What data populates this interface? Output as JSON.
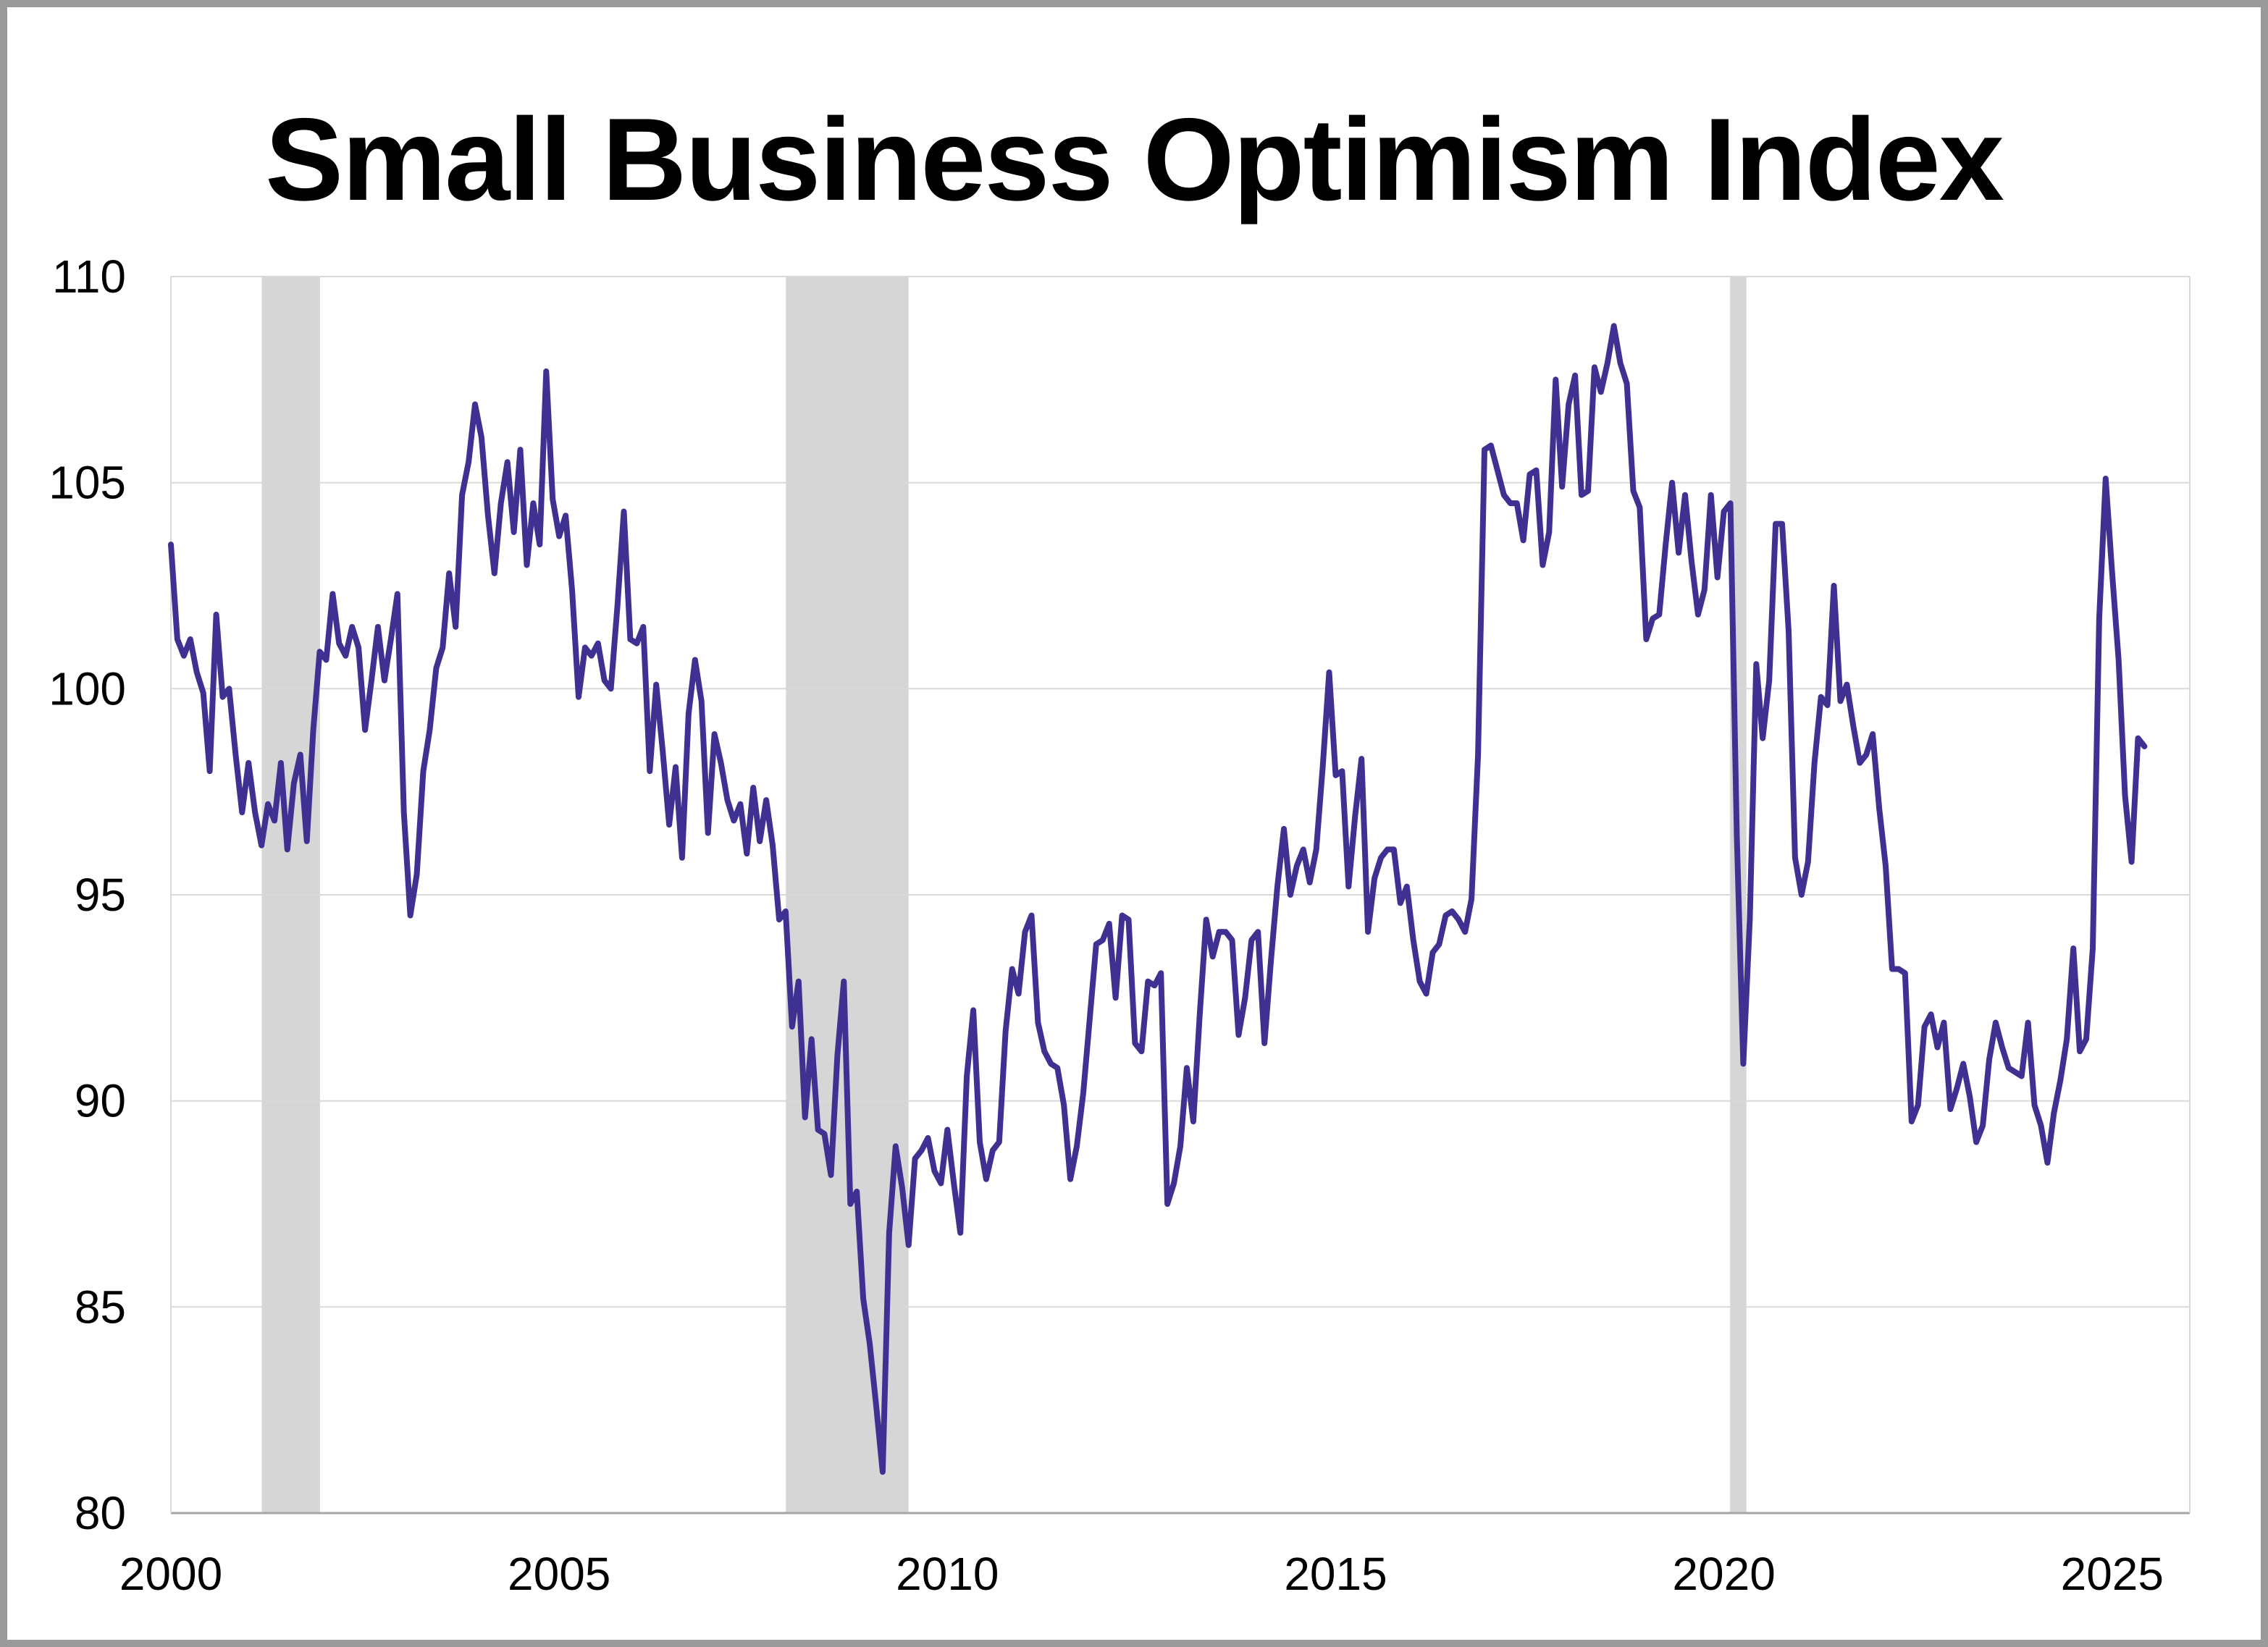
{
  "page": {
    "title": "Small Business Optimism Index"
  },
  "chart_data": {
    "type": "line",
    "title": "Small Business Optimism Index",
    "xlabel": "",
    "ylabel": "",
    "x_min": 2000,
    "x_max": 2026,
    "y_min": 80,
    "y_max": 110,
    "y_ticks": [
      80,
      85,
      90,
      95,
      100,
      105,
      110
    ],
    "x_ticks": [
      2000,
      2005,
      2010,
      2015,
      2020,
      2025
    ],
    "start_year": 2000,
    "frequency": "monthly",
    "grid": true,
    "legend": "none",
    "line_color": "#3e3192",
    "recession_band_color": "#d6d6d6",
    "gridline_color": "#d9d9d9",
    "axis_color": "#a6a6a6",
    "recession_bands": [
      {
        "start": 2001.17,
        "end": 2001.92
      },
      {
        "start": 2007.92,
        "end": 2009.5
      },
      {
        "start": 2020.08,
        "end": 2020.29
      }
    ],
    "series_name": "Small Business Optimism Index",
    "values": [
      103.5,
      101.2,
      100.8,
      101.2,
      100.4,
      99.9,
      98.0,
      101.8,
      99.8,
      100.0,
      98.4,
      97.0,
      98.2,
      97.0,
      96.2,
      97.2,
      96.8,
      98.2,
      96.1,
      97.7,
      98.4,
      96.3,
      99.0,
      100.9,
      100.7,
      102.3,
      101.1,
      100.8,
      101.5,
      101.0,
      99.0,
      100.2,
      101.5,
      100.2,
      101.2,
      102.3,
      97.0,
      94.5,
      95.5,
      98.0,
      99.0,
      100.5,
      101.0,
      102.8,
      101.5,
      104.7,
      105.5,
      106.9,
      106.1,
      104.2,
      102.8,
      104.5,
      105.5,
      103.8,
      105.8,
      103.0,
      104.5,
      103.5,
      107.7,
      104.6,
      103.7,
      104.2,
      102.4,
      99.8,
      101.0,
      100.8,
      101.1,
      100.2,
      100.0,
      102.0,
      104.3,
      101.2,
      101.1,
      101.5,
      98.0,
      100.1,
      98.5,
      96.7,
      98.1,
      95.9,
      99.4,
      100.7,
      99.7,
      96.5,
      98.9,
      98.2,
      97.3,
      96.8,
      97.2,
      96.0,
      97.6,
      96.3,
      97.3,
      96.2,
      94.4,
      94.6,
      91.8,
      92.9,
      89.6,
      91.5,
      89.3,
      89.2,
      88.2,
      91.1,
      92.9,
      87.5,
      87.8,
      85.2,
      84.1,
      82.6,
      81.0,
      86.8,
      88.9,
      87.9,
      86.5,
      88.6,
      88.8,
      89.1,
      88.3,
      88.0,
      89.3,
      88.0,
      86.8,
      90.6,
      92.2,
      89.0,
      88.1,
      88.8,
      89.0,
      91.7,
      93.2,
      92.6,
      94.1,
      94.5,
      91.9,
      91.2,
      90.9,
      90.8,
      89.9,
      88.1,
      88.9,
      90.2,
      92.0,
      93.8,
      93.9,
      94.3,
      92.5,
      94.5,
      94.4,
      91.4,
      91.2,
      92.9,
      92.8,
      93.1,
      87.5,
      88.0,
      88.9,
      90.8,
      89.5,
      92.1,
      94.4,
      93.5,
      94.1,
      94.1,
      93.9,
      91.6,
      92.5,
      93.9,
      94.1,
      91.4,
      93.4,
      95.2,
      96.6,
      95.0,
      95.7,
      96.1,
      95.3,
      96.1,
      98.1,
      100.4,
      97.9,
      98.0,
      95.2,
      96.9,
      98.3,
      94.1,
      95.4,
      95.9,
      96.1,
      96.1,
      94.8,
      95.2,
      93.9,
      92.9,
      92.6,
      93.6,
      93.8,
      94.5,
      94.6,
      94.4,
      94.1,
      94.9,
      98.4,
      105.8,
      105.9,
      105.3,
      104.7,
      104.5,
      104.5,
      103.6,
      105.2,
      105.3,
      103.0,
      103.8,
      107.5,
      104.9,
      106.9,
      107.6,
      104.7,
      104.8,
      107.8,
      107.2,
      107.9,
      108.8,
      107.9,
      107.4,
      104.8,
      104.4,
      101.2,
      101.7,
      101.8,
      103.5,
      105.0,
      103.3,
      104.7,
      103.1,
      101.8,
      102.4,
      104.7,
      102.7,
      104.3,
      104.5,
      96.4,
      90.9,
      94.4,
      100.6,
      98.8,
      100.2,
      104.0,
      104.0,
      101.4,
      95.9,
      95.0,
      95.8,
      98.2,
      99.8,
      99.6,
      102.5,
      99.7,
      100.1,
      99.1,
      98.2,
      98.4,
      98.9,
      97.1,
      95.7,
      93.2,
      93.2,
      93.1,
      89.5,
      89.9,
      91.8,
      92.1,
      91.3,
      91.9,
      89.8,
      90.3,
      90.9,
      90.1,
      89.0,
      89.4,
      91.0,
      91.9,
      91.3,
      90.8,
      90.7,
      90.6,
      91.9,
      89.9,
      89.4,
      88.5,
      89.7,
      90.5,
      91.5,
      93.7,
      91.2,
      91.5,
      93.7,
      101.7,
      105.1,
      102.8,
      100.7,
      97.4,
      95.8,
      98.8,
      98.6
    ]
  }
}
